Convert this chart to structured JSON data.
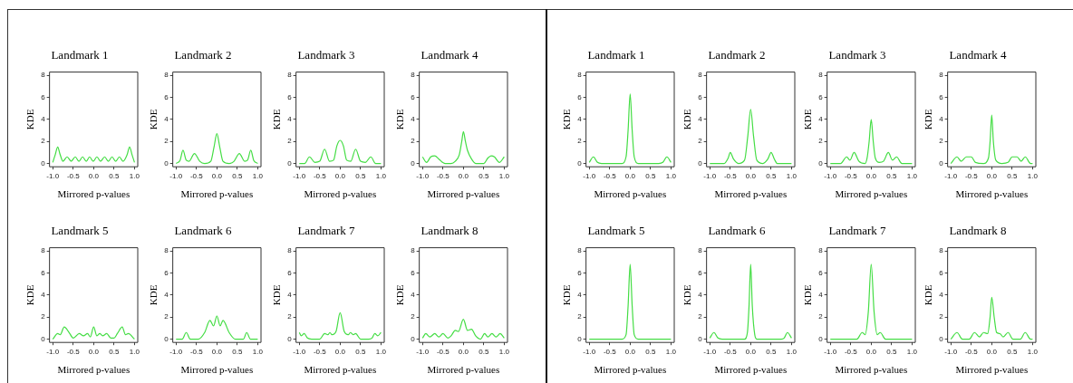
{
  "chart_data": [
    {
      "type": "line",
      "title": "Landmark 1",
      "xlabel": "Mirrored p-values",
      "ylabel": "KDE",
      "marker": "none",
      "x": [
        -1,
        -0.94,
        -0.88,
        -0.82,
        -0.75,
        -0.65,
        -0.55,
        -0.45,
        -0.36,
        -0.27,
        -0.18,
        -0.1,
        -0.01,
        0.08,
        0.17,
        0.27,
        0.36,
        0.45,
        0.54,
        0.63,
        0.72,
        0.82,
        0.88,
        0.94,
        1
      ],
      "series": [
        {
          "color": "#44dd44",
          "values": [
            0.1,
            0.8,
            1.5,
            0.8,
            0.2,
            0.6,
            0.2,
            0.6,
            0.2,
            0.6,
            0.2,
            0.6,
            0.2,
            0.6,
            0.2,
            0.6,
            0.2,
            0.6,
            0.2,
            0.6,
            0.2,
            0.8,
            1.5,
            0.8,
            0.1
          ]
        }
      ],
      "xlim": [
        -1.08,
        1.08
      ],
      "ylim": [
        -0.3,
        8.3
      ],
      "xticks": [
        {
          "value": -1,
          "label": "-1.0"
        },
        {
          "value": -0.5,
          "label": "-0.5"
        },
        {
          "value": 0,
          "label": "0.0"
        },
        {
          "value": 0.5,
          "label": "0.5"
        },
        {
          "value": 1,
          "label": "1.0"
        }
      ],
      "yticks": [
        0,
        2,
        4,
        6,
        8
      ]
    },
    {
      "type": "line",
      "title": "Landmark 2",
      "xlabel": "Mirrored p-values",
      "ylabel": "KDE",
      "marker": "none",
      "x": [
        -1,
        -0.9,
        -0.83,
        -0.75,
        -0.68,
        -0.55,
        -0.42,
        -0.3,
        -0.15,
        -0.07,
        0,
        0.07,
        0.15,
        0.3,
        0.42,
        0.55,
        0.68,
        0.75,
        0.83,
        0.9,
        1
      ],
      "series": [
        {
          "color": "#44dd44",
          "values": [
            0,
            0.3,
            1.2,
            0.3,
            0.2,
            0.9,
            0.2,
            0,
            0.2,
            1.5,
            2.7,
            1.5,
            0.2,
            0,
            0.2,
            0.9,
            0.2,
            0.3,
            1.2,
            0.3,
            0
          ]
        }
      ],
      "xlim": [
        -1.08,
        1.08
      ],
      "ylim": [
        -0.3,
        8.3
      ],
      "xticks": [
        {
          "value": -1,
          "label": "-1.0"
        },
        {
          "value": -0.5,
          "label": "-0.5"
        },
        {
          "value": 0,
          "label": "0.0"
        },
        {
          "value": 0.5,
          "label": "0.5"
        },
        {
          "value": 1,
          "label": "1.0"
        }
      ],
      "yticks": [
        0,
        2,
        4,
        6,
        8
      ]
    },
    {
      "type": "line",
      "title": "Landmark 3",
      "xlabel": "Mirrored p-values",
      "ylabel": "KDE",
      "marker": "none",
      "x": [
        -1,
        -0.87,
        -0.75,
        -0.62,
        -0.5,
        -0.38,
        -0.26,
        -0.16,
        -0.08,
        0,
        0.08,
        0.16,
        0.26,
        0.38,
        0.5,
        0.62,
        0.75,
        0.87,
        1
      ],
      "series": [
        {
          "color": "#44dd44",
          "values": [
            0,
            0,
            0.6,
            0.1,
            0.2,
            1.3,
            0.2,
            0.3,
            1.6,
            2.1,
            1.6,
            0.3,
            0.2,
            1.3,
            0.2,
            0.1,
            0.6,
            0,
            0
          ]
        }
      ],
      "xlim": [
        -1.08,
        1.08
      ],
      "ylim": [
        -0.3,
        8.3
      ],
      "xticks": [
        {
          "value": -1,
          "label": "-1.0"
        },
        {
          "value": -0.5,
          "label": "-0.5"
        },
        {
          "value": 0,
          "label": "0.0"
        },
        {
          "value": 0.5,
          "label": "0.5"
        },
        {
          "value": 1,
          "label": "1.0"
        }
      ],
      "yticks": [
        0,
        2,
        4,
        6,
        8
      ]
    },
    {
      "type": "line",
      "title": "Landmark 4",
      "xlabel": "Mirrored p-values",
      "ylabel": "KDE",
      "marker": "none",
      "x": [
        -1,
        -0.9,
        -0.8,
        -0.7,
        -0.6,
        -0.45,
        -0.3,
        -0.2,
        -0.1,
        -0.04,
        0,
        0.05,
        0.1,
        0.2,
        0.3,
        0.5,
        0.6,
        0.68,
        0.76,
        0.88,
        1
      ],
      "series": [
        {
          "color": "#44dd44",
          "values": [
            0.6,
            0.1,
            0.6,
            0.7,
            0.4,
            0,
            0,
            0.2,
            0.8,
            2.0,
            2.9,
            2.0,
            1.2,
            0.4,
            0,
            0,
            0.5,
            0.7,
            0.6,
            0.1,
            0.6
          ]
        }
      ],
      "xlim": [
        -1.08,
        1.08
      ],
      "ylim": [
        -0.3,
        8.3
      ],
      "xticks": [
        {
          "value": -1,
          "label": "-1.0"
        },
        {
          "value": -0.5,
          "label": "-0.5"
        },
        {
          "value": 0,
          "label": "0.0"
        },
        {
          "value": 0.5,
          "label": "0.5"
        },
        {
          "value": 1,
          "label": "1.0"
        }
      ],
      "yticks": [
        0,
        2,
        4,
        6,
        8
      ]
    },
    {
      "type": "line",
      "title": "Landmark 5",
      "xlabel": "Mirrored p-values",
      "ylabel": "KDE",
      "marker": "none",
      "x": [
        -1,
        -0.88,
        -0.82,
        -0.72,
        -0.6,
        -0.5,
        -0.35,
        -0.25,
        -0.15,
        -0.08,
        0,
        0.08,
        0.15,
        0.22,
        0.32,
        0.42,
        0.5,
        0.58,
        0.7,
        0.78,
        0.85,
        1
      ],
      "series": [
        {
          "color": "#44dd44",
          "values": [
            0,
            0.5,
            0.4,
            1.1,
            0.6,
            0.1,
            0.5,
            0.3,
            0.5,
            0.2,
            1.1,
            0.3,
            0.5,
            0.3,
            0.5,
            0.1,
            0.1,
            0.5,
            1.1,
            0.4,
            0.5,
            0
          ]
        }
      ],
      "xlim": [
        -1.08,
        1.08
      ],
      "ylim": [
        -0.3,
        8.3
      ],
      "xticks": [
        {
          "value": -1,
          "label": "-1.0"
        },
        {
          "value": -0.5,
          "label": "-0.5"
        },
        {
          "value": 0,
          "label": "0.0"
        },
        {
          "value": 0.5,
          "label": "0.5"
        },
        {
          "value": 1,
          "label": "1.0"
        }
      ],
      "yticks": [
        0,
        2,
        4,
        6,
        8
      ]
    },
    {
      "type": "line",
      "title": "Landmark 6",
      "xlabel": "Mirrored p-values",
      "ylabel": "KDE",
      "marker": "none",
      "x": [
        -1,
        -0.85,
        -0.75,
        -0.65,
        -0.45,
        -0.3,
        -0.17,
        -0.08,
        0,
        0.08,
        0.15,
        0.3,
        0.45,
        0.65,
        0.73,
        0.82,
        1
      ],
      "series": [
        {
          "color": "#44dd44",
          "values": [
            0,
            0,
            0.6,
            0,
            0,
            0.6,
            1.7,
            1.2,
            2.1,
            1.2,
            1.7,
            0.6,
            0,
            0,
            0.6,
            0,
            0
          ]
        }
      ],
      "xlim": [
        -1.08,
        1.08
      ],
      "ylim": [
        -0.3,
        8.3
      ],
      "xticks": [
        {
          "value": -1,
          "label": "-1.0"
        },
        {
          "value": -0.5,
          "label": "-0.5"
        },
        {
          "value": 0,
          "label": "0.0"
        },
        {
          "value": 0.5,
          "label": "0.5"
        },
        {
          "value": 1,
          "label": "1.0"
        }
      ],
      "yticks": [
        0,
        2,
        4,
        6,
        8
      ]
    },
    {
      "type": "line",
      "title": "Landmark 7",
      "xlabel": "Mirrored p-values",
      "ylabel": "KDE",
      "marker": "none",
      "x": [
        -1,
        -0.95,
        -0.88,
        -0.8,
        -0.7,
        -0.5,
        -0.38,
        -0.3,
        -0.25,
        -0.2,
        -0.1,
        0,
        0.1,
        0.2,
        0.25,
        0.32,
        0.38,
        0.5,
        0.7,
        0.78,
        0.85,
        0.92,
        1
      ],
      "series": [
        {
          "color": "#44dd44",
          "values": [
            0.6,
            0.3,
            0.5,
            0.1,
            0,
            0,
            0.5,
            0.4,
            0.6,
            0.4,
            0.7,
            2.4,
            0.7,
            0.4,
            0.6,
            0.4,
            0.5,
            0,
            0,
            0.1,
            0.5,
            0.3,
            0.6
          ]
        }
      ],
      "xlim": [
        -1.08,
        1.08
      ],
      "ylim": [
        -0.3,
        8.3
      ],
      "xticks": [
        {
          "value": -1,
          "label": "-1.0"
        },
        {
          "value": -0.5,
          "label": "-0.5"
        },
        {
          "value": 0,
          "label": "0.0"
        },
        {
          "value": 0.5,
          "label": "0.5"
        },
        {
          "value": 1,
          "label": "1.0"
        }
      ],
      "yticks": [
        0,
        2,
        4,
        6,
        8
      ]
    },
    {
      "type": "line",
      "title": "Landmark 8",
      "xlabel": "Mirrored p-values",
      "ylabel": "KDE",
      "marker": "none",
      "x": [
        -1,
        -0.92,
        -0.82,
        -0.7,
        -0.6,
        -0.5,
        -0.38,
        -0.3,
        -0.2,
        -0.12,
        0,
        0.1,
        0.2,
        0.3,
        0.42,
        0.52,
        0.6,
        0.7,
        0.8,
        0.9,
        1
      ],
      "series": [
        {
          "color": "#44dd44",
          "values": [
            0.1,
            0.5,
            0.2,
            0.5,
            0.2,
            0.5,
            0.1,
            0.3,
            0.8,
            0.7,
            1.8,
            0.8,
            0.9,
            0.3,
            0,
            0.5,
            0.2,
            0.5,
            0.2,
            0.5,
            0.1
          ]
        }
      ],
      "xlim": [
        -1.08,
        1.08
      ],
      "ylim": [
        -0.3,
        8.3
      ],
      "xticks": [
        {
          "value": -1,
          "label": "-1.0"
        },
        {
          "value": -0.5,
          "label": "-0.5"
        },
        {
          "value": 0,
          "label": "0.0"
        },
        {
          "value": 0.5,
          "label": "0.5"
        },
        {
          "value": 1,
          "label": "1.0"
        }
      ],
      "yticks": [
        0,
        2,
        4,
        6,
        8
      ]
    },
    {
      "type": "line",
      "title": "Landmark 1",
      "xlabel": "Mirrored p-values",
      "ylabel": "KDE",
      "marker": "none",
      "x": [
        -1,
        -0.9,
        -0.8,
        -0.7,
        -0.2,
        -0.1,
        -0.05,
        0,
        0.05,
        0.1,
        0.2,
        0.7,
        0.8,
        0.9,
        1
      ],
      "series": [
        {
          "color": "#44dd44",
          "values": [
            0.1,
            0.6,
            0.1,
            0,
            0,
            0.6,
            3.0,
            6.3,
            3.0,
            0.6,
            0,
            0,
            0.1,
            0.6,
            0.1
          ]
        }
      ],
      "xlim": [
        -1.08,
        1.08
      ],
      "ylim": [
        -0.3,
        8.3
      ],
      "xticks": [
        {
          "value": -1,
          "label": "-1.0"
        },
        {
          "value": -0.5,
          "label": "-0.5"
        },
        {
          "value": 0,
          "label": "0.0"
        },
        {
          "value": 0.5,
          "label": "0.5"
        },
        {
          "value": 1,
          "label": "1.0"
        }
      ],
      "yticks": [
        0,
        2,
        4,
        6,
        8
      ]
    },
    {
      "type": "line",
      "title": "Landmark 2",
      "xlabel": "Mirrored p-values",
      "ylabel": "KDE",
      "marker": "none",
      "x": [
        -1,
        -0.65,
        -0.55,
        -0.5,
        -0.42,
        -0.3,
        -0.15,
        -0.07,
        0,
        0.07,
        0.15,
        0.3,
        0.42,
        0.5,
        0.58,
        0.65,
        1
      ],
      "series": [
        {
          "color": "#44dd44",
          "values": [
            0,
            0,
            0.5,
            1.0,
            0.4,
            0,
            0.3,
            2.5,
            4.9,
            2.5,
            0.3,
            0,
            0.4,
            1.0,
            0.4,
            0,
            0
          ]
        }
      ],
      "xlim": [
        -1.08,
        1.08
      ],
      "ylim": [
        -0.3,
        8.3
      ],
      "xticks": [
        {
          "value": -1,
          "label": "-1.0"
        },
        {
          "value": -0.5,
          "label": "-0.5"
        },
        {
          "value": 0,
          "label": "0.0"
        },
        {
          "value": 0.5,
          "label": "0.5"
        },
        {
          "value": 1,
          "label": "1.0"
        }
      ],
      "yticks": [
        0,
        2,
        4,
        6,
        8
      ]
    },
    {
      "type": "line",
      "title": "Landmark 3",
      "xlabel": "Mirrored p-values",
      "ylabel": "KDE",
      "marker": "none",
      "x": [
        -1,
        -0.75,
        -0.6,
        -0.52,
        -0.42,
        -0.3,
        -0.15,
        -0.1,
        -0.05,
        0,
        0.05,
        0.1,
        0.2,
        0.3,
        0.42,
        0.52,
        0.62,
        0.75,
        1
      ],
      "series": [
        {
          "color": "#44dd44",
          "values": [
            0,
            0,
            0.6,
            0.3,
            1.0,
            0.2,
            0,
            0.5,
            2.0,
            4.0,
            2.0,
            0.5,
            0.1,
            0.2,
            1.0,
            0.3,
            0.6,
            0,
            0
          ]
        }
      ],
      "xlim": [
        -1.08,
        1.08
      ],
      "ylim": [
        -0.3,
        8.3
      ],
      "xticks": [
        {
          "value": -1,
          "label": "-1.0"
        },
        {
          "value": -0.5,
          "label": "-0.5"
        },
        {
          "value": 0,
          "label": "0.0"
        },
        {
          "value": 0.5,
          "label": "0.5"
        },
        {
          "value": 1,
          "label": "1.0"
        }
      ],
      "yticks": [
        0,
        2,
        4,
        6,
        8
      ]
    },
    {
      "type": "line",
      "title": "Landmark 4",
      "xlabel": "Mirrored p-values",
      "ylabel": "KDE",
      "marker": "none",
      "x": [
        -1,
        -0.85,
        -0.75,
        -0.62,
        -0.5,
        -0.4,
        -0.2,
        -0.08,
        -0.04,
        0,
        0.04,
        0.1,
        0.25,
        0.4,
        0.5,
        0.62,
        0.72,
        0.82,
        0.95,
        1
      ],
      "series": [
        {
          "color": "#44dd44",
          "values": [
            0,
            0.6,
            0.2,
            0.6,
            0.6,
            0.1,
            0,
            0.5,
            2.0,
            4.4,
            2.0,
            0.3,
            0,
            0.1,
            0.6,
            0.6,
            0.2,
            0.6,
            0,
            0
          ]
        }
      ],
      "xlim": [
        -1.08,
        1.08
      ],
      "ylim": [
        -0.3,
        8.3
      ],
      "xticks": [
        {
          "value": -1,
          "label": "-1.0"
        },
        {
          "value": -0.5,
          "label": "-0.5"
        },
        {
          "value": 0,
          "label": "0.0"
        },
        {
          "value": 0.5,
          "label": "0.5"
        },
        {
          "value": 1,
          "label": "1.0"
        }
      ],
      "yticks": [
        0,
        2,
        4,
        6,
        8
      ]
    },
    {
      "type": "line",
      "title": "Landmark 5",
      "xlabel": "Mirrored p-values",
      "ylabel": "KDE",
      "marker": "none",
      "x": [
        -1,
        -0.2,
        -0.1,
        -0.05,
        0,
        0.05,
        0.1,
        0.2,
        1
      ],
      "series": [
        {
          "color": "#44dd44",
          "values": [
            0,
            0,
            0.4,
            3.0,
            6.8,
            3.0,
            0.4,
            0,
            0
          ]
        }
      ],
      "xlim": [
        -1.08,
        1.08
      ],
      "ylim": [
        -0.3,
        8.3
      ],
      "xticks": [
        {
          "value": -1,
          "label": "-1.0"
        },
        {
          "value": -0.5,
          "label": "-0.5"
        },
        {
          "value": 0,
          "label": "0.0"
        },
        {
          "value": 0.5,
          "label": "0.5"
        },
        {
          "value": 1,
          "label": "1.0"
        }
      ],
      "yticks": [
        0,
        2,
        4,
        6,
        8
      ]
    },
    {
      "type": "line",
      "title": "Landmark 6",
      "xlabel": "Mirrored p-values",
      "ylabel": "KDE",
      "marker": "none",
      "x": [
        -1,
        -0.9,
        -0.8,
        -0.7,
        -0.15,
        -0.08,
        -0.04,
        0,
        0.04,
        0.1,
        0.15,
        0.75,
        0.82,
        0.9,
        1
      ],
      "series": [
        {
          "color": "#44dd44",
          "values": [
            0.1,
            0.6,
            0.1,
            0,
            0,
            0.6,
            3.0,
            6.8,
            3.0,
            0.4,
            0,
            0,
            0.1,
            0.6,
            0.1
          ]
        }
      ],
      "xlim": [
        -1.08,
        1.08
      ],
      "ylim": [
        -0.3,
        8.3
      ],
      "xticks": [
        {
          "value": -1,
          "label": "-1.0"
        },
        {
          "value": -0.5,
          "label": "-0.5"
        },
        {
          "value": 0,
          "label": "0.0"
        },
        {
          "value": 0.5,
          "label": "0.5"
        },
        {
          "value": 1,
          "label": "1.0"
        }
      ],
      "yticks": [
        0,
        2,
        4,
        6,
        8
      ]
    },
    {
      "type": "line",
      "title": "Landmark 7",
      "xlabel": "Mirrored p-values",
      "ylabel": "KDE",
      "marker": "none",
      "x": [
        -1,
        -0.35,
        -0.22,
        -0.15,
        -0.07,
        0,
        0.07,
        0.15,
        0.22,
        0.35,
        1
      ],
      "series": [
        {
          "color": "#44dd44",
          "values": [
            0,
            0,
            0.6,
            0.4,
            2.5,
            6.8,
            2.5,
            0.4,
            0.6,
            0,
            0
          ]
        }
      ],
      "xlim": [
        -1.08,
        1.08
      ],
      "ylim": [
        -0.3,
        8.3
      ],
      "xticks": [
        {
          "value": -1,
          "label": "-1.0"
        },
        {
          "value": -0.5,
          "label": "-0.5"
        },
        {
          "value": 0,
          "label": "0.0"
        },
        {
          "value": 0.5,
          "label": "0.5"
        },
        {
          "value": 1,
          "label": "1.0"
        }
      ],
      "yticks": [
        0,
        2,
        4,
        6,
        8
      ]
    },
    {
      "type": "line",
      "title": "Landmark 8",
      "xlabel": "Mirrored p-values",
      "ylabel": "KDE",
      "marker": "none",
      "x": [
        -1,
        -0.85,
        -0.72,
        -0.55,
        -0.42,
        -0.3,
        -0.2,
        -0.1,
        -0.04,
        0,
        0.06,
        0.12,
        0.2,
        0.28,
        0.4,
        0.52,
        0.7,
        0.82,
        0.95,
        1
      ],
      "series": [
        {
          "color": "#44dd44",
          "values": [
            0,
            0.6,
            0,
            0,
            0.6,
            0.2,
            0.6,
            0.5,
            2.0,
            3.8,
            2.0,
            0.6,
            0.5,
            0.2,
            0.6,
            0,
            0,
            0.6,
            0,
            0
          ]
        }
      ],
      "xlim": [
        -1.08,
        1.08
      ],
      "ylim": [
        -0.3,
        8.3
      ],
      "xticks": [
        {
          "value": -1,
          "label": "-1.0"
        },
        {
          "value": -0.5,
          "label": "-0.5"
        },
        {
          "value": 0,
          "label": "0.0"
        },
        {
          "value": 0.5,
          "label": "0.5"
        },
        {
          "value": 1,
          "label": "1.0"
        }
      ],
      "yticks": [
        0,
        2,
        4,
        6,
        8
      ]
    }
  ]
}
